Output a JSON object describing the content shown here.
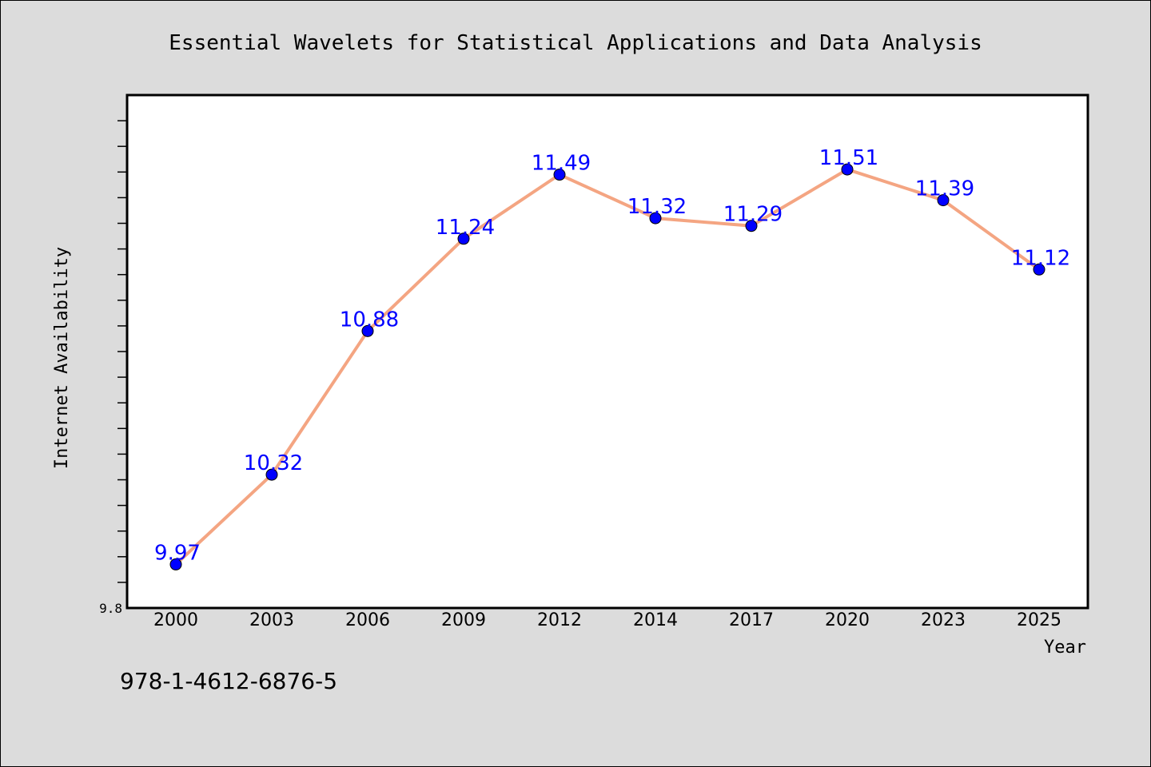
{
  "chart_data": {
    "type": "line",
    "title": "Essential Wavelets for Statistical Applications and Data Analysis",
    "xlabel": "Year",
    "ylabel": "Internet Availability",
    "categories": [
      "2000",
      "2003",
      "2006",
      "2009",
      "2012",
      "2014",
      "2017",
      "2020",
      "2023",
      "2025"
    ],
    "series": [
      {
        "values": [
          9.97,
          10.32,
          10.88,
          11.24,
          11.49,
          11.32,
          11.29,
          11.51,
          11.39,
          11.12
        ],
        "labels": [
          "9.97",
          "10.32",
          "10.88",
          "11.24",
          "11.49",
          "11.32",
          "11.29",
          "11.51",
          "11.39",
          "11.12"
        ]
      }
    ],
    "ylim": [
      9.8,
      11.8
    ],
    "ytick_labels": [
      "9.8"
    ],
    "grid": false,
    "line_color": "#f4a582",
    "marker_color": "#0000ff",
    "label_color": "#0000ff"
  },
  "footnote": "978-1-4612-6876-5"
}
